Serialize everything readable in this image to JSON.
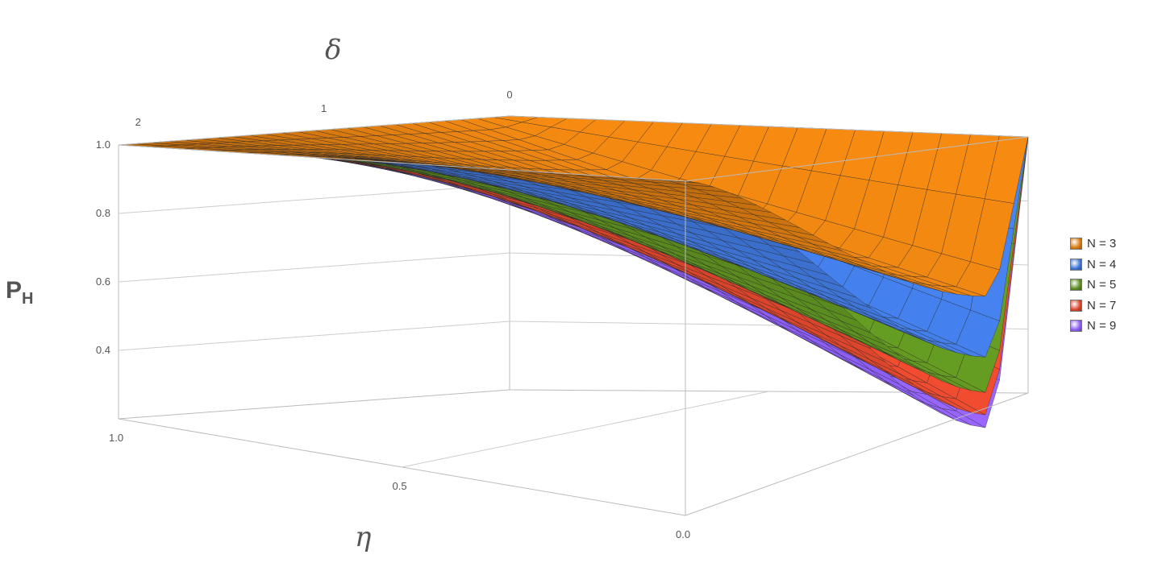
{
  "chart_data": {
    "type": "surface3d",
    "zlabel_main": "P",
    "zlabel_sub": "H",
    "xlabel": "δ",
    "ylabel": "η",
    "delta_ticks": [
      "2",
      "1",
      "0"
    ],
    "eta_ticks": [
      "1.0",
      "0.5",
      "0.0"
    ],
    "z_ticks": [
      "1.0",
      "0.8",
      "0.6",
      "0.4"
    ],
    "zlim": [
      0.2,
      1.0
    ],
    "eta_range": [
      0,
      1
    ],
    "series": [
      {
        "name": "N = 3",
        "N": 3,
        "color": "#d97a10",
        "min_value": 0.52
      },
      {
        "name": "N = 4",
        "N": 4,
        "color": "#3e74d6",
        "min_value": 0.33
      },
      {
        "name": "N = 5",
        "N": 5,
        "color": "#5b8c1f",
        "min_value": 0.22
      },
      {
        "name": "N = 7",
        "N": 7,
        "color": "#d9442b",
        "min_value": 0.15
      },
      {
        "name": "N = 9",
        "N": 9,
        "color": "#8a5cf0",
        "min_value": 0.11
      }
    ],
    "legend_position": "right"
  }
}
